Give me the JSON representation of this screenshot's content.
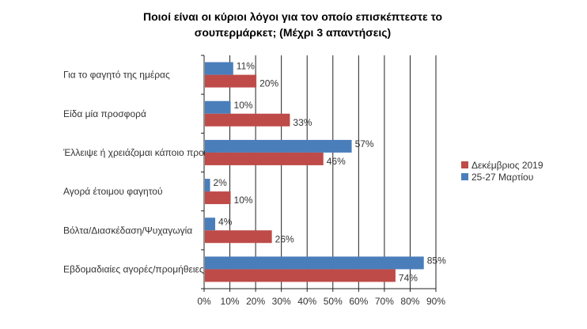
{
  "chart_data": {
    "type": "bar",
    "orientation": "horizontal",
    "title_line1": "Ποιοί είναι οι κύριοι λόγοι για τον οποίο επισκέπτεστε το",
    "title_line2": "σουπερμάρκετ; (Μέχρι 3 απαντήσεις)",
    "categories": [
      "Για το φαγητό της ημέρας",
      "Είδα μία προσφορά",
      "Έλλειψε ή χρειάζομαι κάποιο προϊόν",
      "Αγορά έτοιμου φαγητού",
      "Βόλτα/Διασκέδαση/Ψυχαγωγία",
      "Εβδομαδιαίες αγορές/προμήθειες"
    ],
    "series": [
      {
        "name": "25-27 Μαρτίου",
        "color": "#4a7ebb",
        "values": [
          11,
          10,
          57,
          2,
          4,
          85
        ],
        "labels": [
          "11%",
          "10%",
          "57%",
          "2%",
          "4%",
          "85%"
        ]
      },
      {
        "name": "Δεκέμβριος 2019",
        "color": "#be4b48",
        "values": [
          20,
          33,
          46,
          10,
          26,
          74
        ],
        "labels": [
          "20%",
          "33%",
          "46%",
          "10%",
          "26%",
          "74%"
        ]
      }
    ],
    "legend_order": [
      "Δεκέμβριος 2019",
      "25-27 Μαρτίου"
    ],
    "legend_position": "right",
    "xlim": [
      0,
      90
    ],
    "xticks": [
      "0%",
      "10%",
      "20%",
      "30%",
      "40%",
      "50%",
      "60%",
      "70%",
      "80%",
      "90%"
    ],
    "grid": true
  }
}
